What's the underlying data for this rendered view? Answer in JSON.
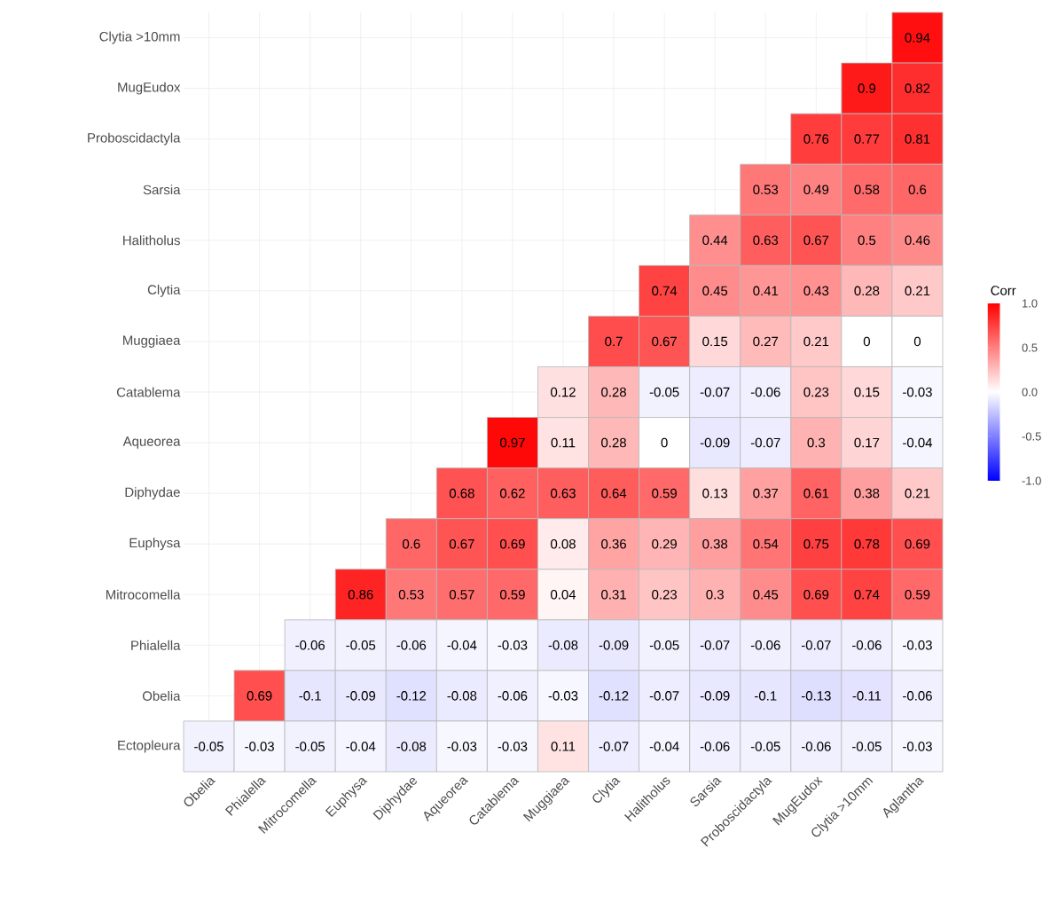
{
  "chart_data": {
    "type": "heatmap",
    "categories": [
      "Obelia",
      "Phialella",
      "Mitrocomella",
      "Euphysa",
      "Diphydae",
      "Aqueorea",
      "Catablema",
      "Muggiaea",
      "Clytia",
      "Halitholus",
      "Sarsia",
      "Proboscidactyla",
      "MugEudox",
      "Clytia >10mm",
      "Aglantha"
    ],
    "y_categories": [
      "Clytia >10mm",
      "MugEudox",
      "Proboscidactyla",
      "Sarsia",
      "Halitholus",
      "Clytia",
      "Muggiaea",
      "Catablema",
      "Aqueorea",
      "Diphydae",
      "Euphysa",
      "Mitrocomella",
      "Phialella",
      "Obelia",
      "Ectopleura"
    ],
    "cells": [
      [
        null,
        null,
        null,
        null,
        null,
        null,
        null,
        null,
        null,
        null,
        null,
        null,
        null,
        null,
        0.94
      ],
      [
        null,
        null,
        null,
        null,
        null,
        null,
        null,
        null,
        null,
        null,
        null,
        null,
        null,
        0.9,
        0.82
      ],
      [
        null,
        null,
        null,
        null,
        null,
        null,
        null,
        null,
        null,
        null,
        null,
        null,
        0.76,
        0.77,
        0.81
      ],
      [
        null,
        null,
        null,
        null,
        null,
        null,
        null,
        null,
        null,
        null,
        null,
        0.53,
        0.49,
        0.58,
        0.6
      ],
      [
        null,
        null,
        null,
        null,
        null,
        null,
        null,
        null,
        null,
        null,
        0.44,
        0.63,
        0.67,
        0.5,
        0.46
      ],
      [
        null,
        null,
        null,
        null,
        null,
        null,
        null,
        null,
        null,
        0.74,
        0.45,
        0.41,
        0.43,
        0.28,
        0.21
      ],
      [
        null,
        null,
        null,
        null,
        null,
        null,
        null,
        null,
        0.7,
        0.67,
        0.15,
        0.27,
        0.21,
        0,
        0
      ],
      [
        null,
        null,
        null,
        null,
        null,
        null,
        null,
        0.12,
        0.28,
        -0.05,
        -0.07,
        -0.06,
        0.23,
        0.15,
        -0.03
      ],
      [
        null,
        null,
        null,
        null,
        null,
        null,
        0.97,
        0.11,
        0.28,
        0,
        -0.09,
        -0.07,
        0.3,
        0.17,
        -0.04
      ],
      [
        null,
        null,
        null,
        null,
        null,
        0.68,
        0.62,
        0.63,
        0.64,
        0.59,
        0.13,
        0.37,
        0.61,
        0.38,
        0.21
      ],
      [
        null,
        null,
        null,
        null,
        0.6,
        0.67,
        0.69,
        0.08,
        0.36,
        0.29,
        0.38,
        0.54,
        0.75,
        0.78,
        0.69
      ],
      [
        null,
        null,
        null,
        0.86,
        0.53,
        0.57,
        0.59,
        0.04,
        0.31,
        0.23,
        0.3,
        0.45,
        0.69,
        0.74,
        0.59
      ],
      [
        null,
        null,
        -0.06,
        -0.05,
        -0.06,
        -0.04,
        -0.03,
        -0.08,
        -0.09,
        -0.05,
        -0.07,
        -0.06,
        -0.07,
        -0.06,
        -0.03
      ],
      [
        null,
        0.69,
        -0.1,
        -0.09,
        -0.12,
        -0.08,
        -0.06,
        -0.03,
        -0.12,
        -0.07,
        -0.09,
        -0.1,
        -0.13,
        -0.11,
        -0.06
      ],
      [
        -0.05,
        -0.03,
        -0.05,
        -0.04,
        -0.08,
        -0.03,
        -0.03,
        0.11,
        -0.07,
        -0.04,
        -0.06,
        -0.05,
        -0.06,
        -0.05,
        -0.03
      ]
    ],
    "clim": [
      -1,
      1
    ],
    "cticks": [
      {
        "value": -1,
        "label": "-1.0"
      },
      -0.5,
      {
        "value": 0,
        "label": "0.0"
      },
      0.5,
      {
        "value": 1,
        "label": "1.0"
      }
    ],
    "clabel": "Corr",
    "grid": true,
    "data_labels": true
  }
}
